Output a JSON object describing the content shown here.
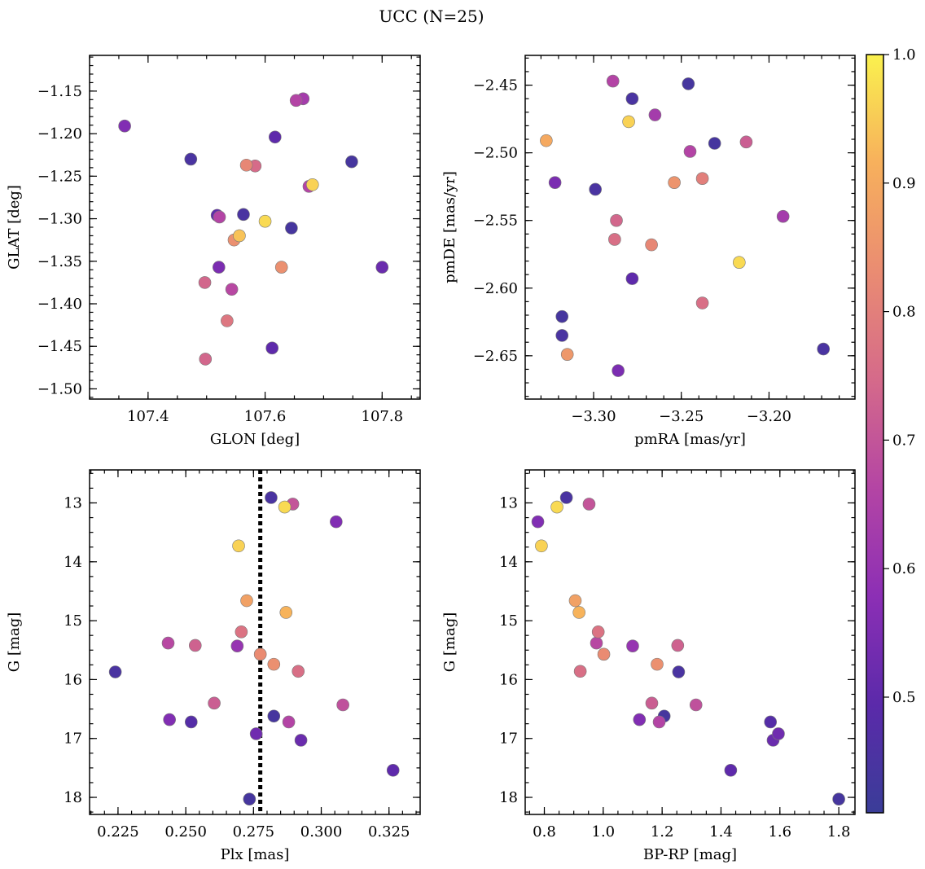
{
  "figure": {
    "title": "UCC (N=25)"
  },
  "colorbar": {
    "range": [
      0.41,
      1.0
    ],
    "ticks": [
      0.5,
      0.6,
      0.7,
      0.8,
      0.9,
      1.0
    ],
    "tick_labels": [
      "0.5",
      "0.6",
      "0.7",
      "0.8",
      "0.9",
      "1.0"
    ],
    "colormap": "plasma",
    "stops": [
      "#3a3d98",
      "#5b2aaa",
      "#8c2fb5",
      "#b445a4",
      "#d56a8a",
      "#ea8c72",
      "#f7b05c",
      "#faf14e"
    ]
  },
  "chart_data": [
    {
      "type": "scatter",
      "xlabel": "GLON [deg]",
      "ylabel": "GLAT [deg]",
      "xlim": [
        107.3,
        107.865
      ],
      "ylim": [
        -1.512,
        -1.108
      ],
      "y_inverted": false,
      "xticks": [
        107.4,
        107.6,
        107.8
      ],
      "xtick_labels": [
        "107.4",
        "107.6",
        "107.8"
      ],
      "yticks": [
        -1.15,
        -1.2,
        -1.25,
        -1.3,
        -1.35,
        -1.4,
        -1.45,
        -1.5
      ],
      "ytick_labels": [
        "−1.15",
        "−1.20",
        "−1.25",
        "−1.30",
        "−1.35",
        "−1.40",
        "−1.45",
        "−1.50"
      ],
      "points": [
        {
          "x": 107.36,
          "y": -1.191,
          "c": 0.56
        },
        {
          "x": 107.473,
          "y": -1.23,
          "c": 0.45
        },
        {
          "x": 107.653,
          "y": -1.161,
          "c": 0.66
        },
        {
          "x": 107.665,
          "y": -1.159,
          "c": 0.63
        },
        {
          "x": 107.617,
          "y": -1.204,
          "c": 0.5
        },
        {
          "x": 107.568,
          "y": -1.237,
          "c": 0.82
        },
        {
          "x": 107.583,
          "y": -1.238,
          "c": 0.75
        },
        {
          "x": 107.748,
          "y": -1.233,
          "c": 0.44
        },
        {
          "x": 107.675,
          "y": -1.262,
          "c": 0.66
        },
        {
          "x": 107.681,
          "y": -1.26,
          "c": 0.96
        },
        {
          "x": 107.518,
          "y": -1.296,
          "c": 0.5
        },
        {
          "x": 107.522,
          "y": -1.298,
          "c": 0.66
        },
        {
          "x": 107.563,
          "y": -1.295,
          "c": 0.45
        },
        {
          "x": 107.6,
          "y": -1.303,
          "c": 0.97
        },
        {
          "x": 107.645,
          "y": -1.311,
          "c": 0.44
        },
        {
          "x": 107.556,
          "y": -1.32,
          "c": 0.94
        },
        {
          "x": 107.547,
          "y": -1.325,
          "c": 0.84
        },
        {
          "x": 107.628,
          "y": -1.357,
          "c": 0.84
        },
        {
          "x": 107.521,
          "y": -1.357,
          "c": 0.55
        },
        {
          "x": 107.8,
          "y": -1.357,
          "c": 0.52
        },
        {
          "x": 107.497,
          "y": -1.375,
          "c": 0.74
        },
        {
          "x": 107.543,
          "y": -1.383,
          "c": 0.67
        },
        {
          "x": 107.535,
          "y": -1.42,
          "c": 0.78
        },
        {
          "x": 107.612,
          "y": -1.452,
          "c": 0.5
        },
        {
          "x": 107.498,
          "y": -1.465,
          "c": 0.74
        }
      ]
    },
    {
      "type": "scatter",
      "xlabel": "pmRA [mas/yr]",
      "ylabel": "pmDE [mas/yr]",
      "xlim": [
        -3.339,
        -3.151
      ],
      "ylim": [
        -2.682,
        -2.428
      ],
      "y_inverted": false,
      "xticks": [
        -3.3,
        -3.25,
        -3.2
      ],
      "xtick_labels": [
        "−3.30",
        "−3.25",
        "−3.20"
      ],
      "yticks": [
        -2.45,
        -2.5,
        -2.55,
        -2.6,
        -2.65
      ],
      "ytick_labels": [
        "−2.45",
        "−2.50",
        "−2.55",
        "−2.60",
        "−2.65"
      ],
      "points": [
        {
          "x": -3.289,
          "y": -2.447,
          "c": 0.66
        },
        {
          "x": -3.246,
          "y": -2.449,
          "c": 0.44
        },
        {
          "x": -3.278,
          "y": -2.46,
          "c": 0.45
        },
        {
          "x": -3.265,
          "y": -2.472,
          "c": 0.63
        },
        {
          "x": -3.28,
          "y": -2.477,
          "c": 0.96
        },
        {
          "x": -3.327,
          "y": -2.491,
          "c": 0.9
        },
        {
          "x": -3.231,
          "y": -2.493,
          "c": 0.44
        },
        {
          "x": -3.213,
          "y": -2.492,
          "c": 0.72
        },
        {
          "x": -3.245,
          "y": -2.499,
          "c": 0.66
        },
        {
          "x": -3.238,
          "y": -2.519,
          "c": 0.8
        },
        {
          "x": -3.254,
          "y": -2.522,
          "c": 0.85
        },
        {
          "x": -3.322,
          "y": -2.522,
          "c": 0.55
        },
        {
          "x": -3.299,
          "y": -2.527,
          "c": 0.45
        },
        {
          "x": -3.192,
          "y": -2.547,
          "c": 0.63
        },
        {
          "x": -3.287,
          "y": -2.55,
          "c": 0.74
        },
        {
          "x": -3.288,
          "y": -2.564,
          "c": 0.76
        },
        {
          "x": -3.267,
          "y": -2.568,
          "c": 0.82
        },
        {
          "x": -3.217,
          "y": -2.581,
          "c": 0.97
        },
        {
          "x": -3.278,
          "y": -2.593,
          "c": 0.5
        },
        {
          "x": -3.238,
          "y": -2.611,
          "c": 0.76
        },
        {
          "x": -3.318,
          "y": -2.621,
          "c": 0.44
        },
        {
          "x": -3.318,
          "y": -2.635,
          "c": 0.45
        },
        {
          "x": -3.315,
          "y": -2.649,
          "c": 0.86
        },
        {
          "x": -3.169,
          "y": -2.645,
          "c": 0.45
        },
        {
          "x": -3.286,
          "y": -2.661,
          "c": 0.55
        }
      ]
    },
    {
      "type": "scatter",
      "xlabel": "Plx [mas]",
      "ylabel": "G [mag]",
      "xlim": [
        0.2145,
        0.3365
      ],
      "ylim": [
        18.29,
        12.44
      ],
      "y_inverted": true,
      "xticks": [
        0.225,
        0.25,
        0.275,
        0.3,
        0.325
      ],
      "xtick_labels": [
        "0.225",
        "0.250",
        "0.275",
        "0.300",
        "0.325"
      ],
      "yticks": [
        13,
        14,
        15,
        16,
        17,
        18
      ],
      "ytick_labels": [
        "13",
        "14",
        "15",
        "16",
        "17",
        "18"
      ],
      "vline": {
        "x": 0.2775,
        "style": "dotted",
        "color": "#000000"
      },
      "points": [
        {
          "x": 0.2815,
          "y": 12.91,
          "c": 0.45
        },
        {
          "x": 0.2895,
          "y": 13.02,
          "c": 0.7
        },
        {
          "x": 0.2865,
          "y": 13.07,
          "c": 0.97
        },
        {
          "x": 0.3055,
          "y": 13.32,
          "c": 0.56
        },
        {
          "x": 0.2695,
          "y": 13.73,
          "c": 0.96
        },
        {
          "x": 0.2725,
          "y": 14.66,
          "c": 0.88
        },
        {
          "x": 0.287,
          "y": 14.86,
          "c": 0.92
        },
        {
          "x": 0.2705,
          "y": 15.19,
          "c": 0.77
        },
        {
          "x": 0.2435,
          "y": 15.38,
          "c": 0.67
        },
        {
          "x": 0.2535,
          "y": 15.42,
          "c": 0.73
        },
        {
          "x": 0.269,
          "y": 15.43,
          "c": 0.6
        },
        {
          "x": 0.2775,
          "y": 15.57,
          "c": 0.83
        },
        {
          "x": 0.2825,
          "y": 15.74,
          "c": 0.84
        },
        {
          "x": 0.2915,
          "y": 15.86,
          "c": 0.76
        },
        {
          "x": 0.224,
          "y": 15.87,
          "c": 0.45
        },
        {
          "x": 0.2605,
          "y": 16.4,
          "c": 0.72
        },
        {
          "x": 0.308,
          "y": 16.43,
          "c": 0.69
        },
        {
          "x": 0.2825,
          "y": 16.62,
          "c": 0.44
        },
        {
          "x": 0.244,
          "y": 16.68,
          "c": 0.56
        },
        {
          "x": 0.288,
          "y": 16.72,
          "c": 0.66
        },
        {
          "x": 0.252,
          "y": 16.72,
          "c": 0.48
        },
        {
          "x": 0.276,
          "y": 16.92,
          "c": 0.53
        },
        {
          "x": 0.2925,
          "y": 17.03,
          "c": 0.52
        },
        {
          "x": 0.3265,
          "y": 17.54,
          "c": 0.5
        },
        {
          "x": 0.2735,
          "y": 18.03,
          "c": 0.44
        }
      ]
    },
    {
      "type": "scatter",
      "xlabel": "BP-RP [mag]",
      "ylabel": "G [mag]",
      "xlim": [
        0.735,
        1.855
      ],
      "ylim": [
        18.29,
        12.44
      ],
      "y_inverted": true,
      "xticks": [
        0.8,
        1.0,
        1.2,
        1.4,
        1.6,
        1.8
      ],
      "xtick_labels": [
        "0.8",
        "1.0",
        "1.2",
        "1.4",
        "1.6",
        "1.8"
      ],
      "yticks": [
        13,
        14,
        15,
        16,
        17,
        18
      ],
      "ytick_labels": [
        "13",
        "14",
        "15",
        "16",
        "17",
        "18"
      ],
      "points": [
        {
          "x": 0.875,
          "y": 12.91,
          "c": 0.45
        },
        {
          "x": 0.952,
          "y": 13.02,
          "c": 0.7
        },
        {
          "x": 0.843,
          "y": 13.07,
          "c": 0.97
        },
        {
          "x": 0.778,
          "y": 13.32,
          "c": 0.56
        },
        {
          "x": 0.79,
          "y": 13.73,
          "c": 0.96
        },
        {
          "x": 0.905,
          "y": 14.66,
          "c": 0.88
        },
        {
          "x": 0.918,
          "y": 14.86,
          "c": 0.92
        },
        {
          "x": 0.983,
          "y": 15.19,
          "c": 0.77
        },
        {
          "x": 0.977,
          "y": 15.38,
          "c": 0.67
        },
        {
          "x": 1.253,
          "y": 15.42,
          "c": 0.73
        },
        {
          "x": 1.1,
          "y": 15.43,
          "c": 0.6
        },
        {
          "x": 1.002,
          "y": 15.57,
          "c": 0.83
        },
        {
          "x": 1.183,
          "y": 15.74,
          "c": 0.84
        },
        {
          "x": 0.922,
          "y": 15.86,
          "c": 0.76
        },
        {
          "x": 1.256,
          "y": 15.87,
          "c": 0.45
        },
        {
          "x": 1.165,
          "y": 16.4,
          "c": 0.72
        },
        {
          "x": 1.315,
          "y": 16.43,
          "c": 0.69
        },
        {
          "x": 1.207,
          "y": 16.62,
          "c": 0.44
        },
        {
          "x": 1.123,
          "y": 16.68,
          "c": 0.56
        },
        {
          "x": 1.19,
          "y": 16.72,
          "c": 0.66
        },
        {
          "x": 1.568,
          "y": 16.72,
          "c": 0.48
        },
        {
          "x": 1.595,
          "y": 16.92,
          "c": 0.53
        },
        {
          "x": 1.577,
          "y": 17.03,
          "c": 0.52
        },
        {
          "x": 1.433,
          "y": 17.54,
          "c": 0.5
        },
        {
          "x": 1.8,
          "y": 18.03,
          "c": 0.44
        }
      ]
    }
  ]
}
